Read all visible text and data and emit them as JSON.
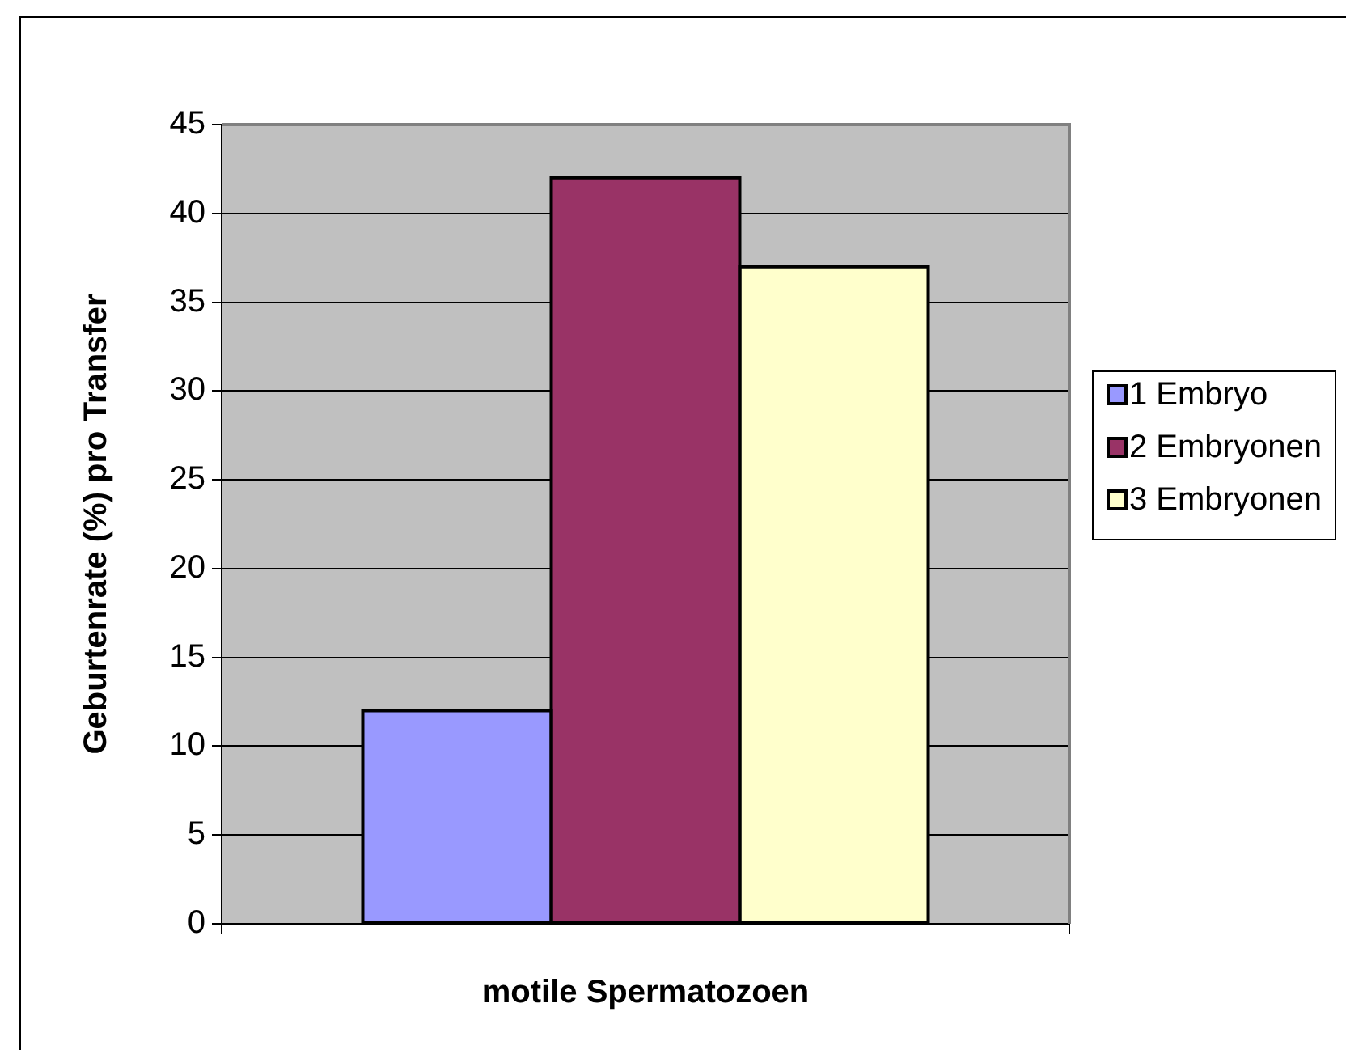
{
  "chart_data": {
    "type": "bar",
    "xlabel": "motile Spermatozoen",
    "ylabel": "Geburtenrate (%) pro Transfer",
    "categories": [
      null
    ],
    "series": [
      {
        "name": "1 Embryo",
        "color": "#9999ff",
        "values": [
          12
        ]
      },
      {
        "name": "2 Embryonen",
        "color": "#993366",
        "values": [
          42
        ]
      },
      {
        "name": "3 Embryonen",
        "color": "#ffffcc",
        "values": [
          37
        ]
      }
    ],
    "ylim": [
      0,
      45
    ],
    "yticks": [
      0,
      5,
      10,
      15,
      20,
      25,
      30,
      35,
      40,
      45
    ],
    "grid": "y",
    "legend": "right"
  }
}
